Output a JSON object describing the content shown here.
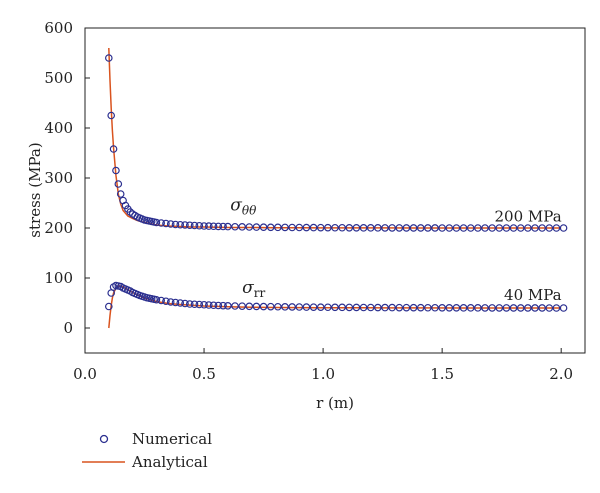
{
  "chart_data": {
    "type": "scatter",
    "xlabel": "r (m)",
    "ylabel": "stress (MPa)",
    "xlim": [
      0.0,
      2.1
    ],
    "ylim": [
      -50,
      600
    ],
    "xticks": [
      0.0,
      0.5,
      1.0,
      1.5,
      2.0
    ],
    "xtick_labels": [
      "0.0",
      "0.5",
      "1.0",
      "1.5",
      "2.0"
    ],
    "yticks": [
      0,
      100,
      200,
      300,
      400,
      500,
      600
    ],
    "ytick_labels": [
      "0",
      "100",
      "200",
      "300",
      "400",
      "500",
      "600"
    ],
    "grid": false,
    "legend_position": "bottom-left",
    "legend": [
      {
        "label": "Numerical",
        "marker": "open-circle",
        "color": "#2b2f8f"
      },
      {
        "label": "Analytical",
        "marker": "line",
        "color": "#d9531e"
      }
    ],
    "annotations": [
      {
        "text": "200 MPa",
        "x": 1.72,
        "y": 213
      },
      {
        "text": "40 MPa",
        "x": 1.76,
        "y": 56
      },
      {
        "base": "σ",
        "sub": "θθ",
        "x": 0.61,
        "y": 235
      },
      {
        "base": "σ",
        "sub": "rr",
        "x": 0.66,
        "y": 70
      }
    ],
    "series": [
      {
        "name": "Analytical",
        "kind": "line",
        "r": [
          0.1,
          0.105,
          0.11,
          0.115,
          0.12,
          0.13,
          0.14,
          0.15,
          0.16,
          0.18,
          0.2,
          0.22,
          0.25,
          0.28,
          0.3,
          0.35,
          0.4,
          0.45,
          0.5,
          0.6,
          0.7,
          0.8,
          0.9,
          1.0,
          1.2,
          1.4,
          1.6,
          1.8,
          2.0
        ],
        "sigma_tt": [
          560,
          495,
          440,
          395,
          360,
          305,
          268,
          248,
          235,
          224,
          219,
          215,
          211,
          208,
          206,
          204,
          203,
          202,
          202,
          201,
          201,
          200.5,
          200.5,
          200.3,
          200.2,
          200.1,
          200.1,
          200,
          200
        ],
        "sigma_rr": [
          0,
          25,
          45,
          60,
          70,
          80,
          84,
          84,
          82,
          77,
          71,
          66,
          60,
          56,
          53,
          49,
          47,
          45.5,
          44,
          42.5,
          41.5,
          41,
          40.8,
          40.6,
          40.4,
          40.2,
          40.1,
          40,
          40
        ]
      },
      {
        "name": "Numerical",
        "kind": "scatter",
        "r": [
          0.1,
          0.11,
          0.12,
          0.13,
          0.14,
          0.15,
          0.16,
          0.17,
          0.18,
          0.19,
          0.2,
          0.21,
          0.22,
          0.23,
          0.24,
          0.25,
          0.26,
          0.27,
          0.28,
          0.29,
          0.3,
          0.32,
          0.34,
          0.36,
          0.38,
          0.4,
          0.42,
          0.44,
          0.46,
          0.48,
          0.5,
          0.52,
          0.54,
          0.56,
          0.58,
          0.6,
          0.63,
          0.66,
          0.69,
          0.72,
          0.75,
          0.78,
          0.81,
          0.84,
          0.87,
          0.9,
          0.93,
          0.96,
          0.99,
          1.02,
          1.05,
          1.08,
          1.11,
          1.14,
          1.17,
          1.2,
          1.23,
          1.26,
          1.29,
          1.32,
          1.35,
          1.38,
          1.41,
          1.44,
          1.47,
          1.5,
          1.53,
          1.56,
          1.59,
          1.62,
          1.65,
          1.68,
          1.71,
          1.74,
          1.77,
          1.8,
          1.83,
          1.86,
          1.89,
          1.92,
          1.95,
          1.98,
          2.01
        ],
        "sigma_tt": [
          540,
          425,
          358,
          315,
          288,
          268,
          255,
          245,
          238,
          232,
          228,
          225,
          222,
          220,
          218,
          216,
          215,
          214,
          213,
          212,
          211,
          210,
          209,
          208,
          207,
          206.5,
          206,
          205.5,
          205,
          204.5,
          204,
          203.8,
          203.5,
          203.2,
          203,
          202.8,
          202.5,
          202.3,
          202,
          201.8,
          201.6,
          201.4,
          201.3,
          201.2,
          201,
          201,
          200.9,
          200.8,
          200.7,
          200.6,
          200.5,
          200.5,
          200.4,
          200.4,
          200.3,
          200.3,
          200.3,
          200.2,
          200.2,
          200.2,
          200.1,
          200.1,
          200.1,
          200.1,
          200.1,
          200,
          200,
          200,
          200,
          200,
          200,
          200,
          200,
          200,
          200,
          200,
          200,
          200,
          200,
          200,
          200,
          200,
          200
        ],
        "sigma_rr": [
          43,
          70,
          82,
          85,
          84,
          83,
          80,
          78,
          76,
          74,
          71,
          69,
          67,
          65,
          63.5,
          62,
          60.5,
          59.5,
          58.5,
          57.5,
          56.5,
          55,
          53.5,
          52,
          51,
          50,
          49,
          48,
          47.5,
          47,
          46.5,
          46,
          45.5,
          45,
          44.7,
          44.4,
          44,
          43.7,
          43.4,
          43.1,
          42.9,
          42.7,
          42.5,
          42.3,
          42.1,
          42,
          41.8,
          41.7,
          41.6,
          41.5,
          41.4,
          41.3,
          41.2,
          41.1,
          41,
          41,
          40.9,
          40.8,
          40.8,
          40.7,
          40.7,
          40.6,
          40.6,
          40.5,
          40.5,
          40.4,
          40.4,
          40.4,
          40.3,
          40.3,
          40.3,
          40.2,
          40.2,
          40.2,
          40.2,
          40.1,
          40.1,
          40.1,
          40.1,
          40.1,
          40,
          40,
          40
        ]
      }
    ]
  }
}
